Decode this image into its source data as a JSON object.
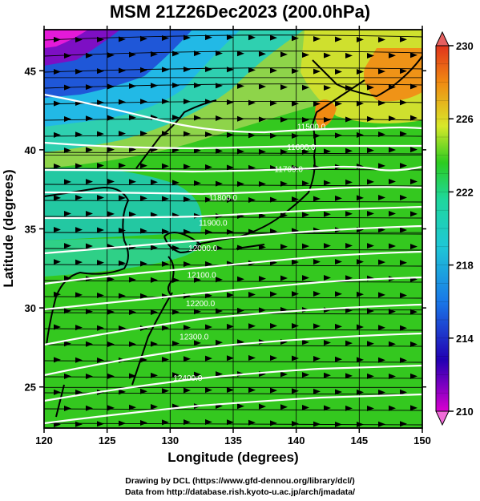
{
  "title": "MSM 21Z26Dec2023 (200.0hPa)",
  "credits": {
    "line1": "Drawing by DCL (https://www.gfd-dennou.org/library/dcl/)",
    "line2": "Data from http://database.rish.kyoto-u.ac.jp/arch/jmadata/"
  },
  "chart_data": {
    "type": "heatmap",
    "title": "MSM 21Z26Dec2023 (200.0hPa)",
    "xlabel": "Longitude (degrees)",
    "ylabel": "Latitude  (degrees)",
    "xlim": [
      120,
      150
    ],
    "ylim": [
      22.4,
      47.6
    ],
    "x_ticks": [
      "120",
      "125",
      "130",
      "135",
      "140",
      "145",
      "150"
    ],
    "y_ticks": [
      "25",
      "30",
      "35",
      "40",
      "45"
    ],
    "grid": true,
    "colorbar": {
      "min": 210,
      "max": 230,
      "ticks": [
        "210",
        "214",
        "218",
        "222",
        "226",
        "230"
      ],
      "colors": [
        "#d900cf",
        "#2200b3",
        "#1fa6ee",
        "#1fd79c",
        "#2ccc20",
        "#d8e82a",
        "#f08a12",
        "#e0331b"
      ]
    },
    "contour_labels": [
      {
        "text": "11500.0",
        "lon": 141.2,
        "lat": 41.3
      },
      {
        "text": "11600.0",
        "lon": 140.4,
        "lat": 40.0
      },
      {
        "text": "11700.0",
        "lon": 139.4,
        "lat": 38.6
      },
      {
        "text": "11800.0",
        "lon": 134.2,
        "lat": 36.8
      },
      {
        "text": "11900.0",
        "lon": 133.4,
        "lat": 35.2
      },
      {
        "text": "12000.0",
        "lon": 132.6,
        "lat": 33.6
      },
      {
        "text": "12100.0",
        "lon": 132.5,
        "lat": 31.9
      },
      {
        "text": "12200.0",
        "lon": 132.4,
        "lat": 30.1
      },
      {
        "text": "12300.0",
        "lon": 131.9,
        "lat": 28.0
      },
      {
        "text": "12400.0",
        "lon": 131.4,
        "lat": 25.4
      }
    ],
    "wind": "westerly streamlines across the domain"
  }
}
